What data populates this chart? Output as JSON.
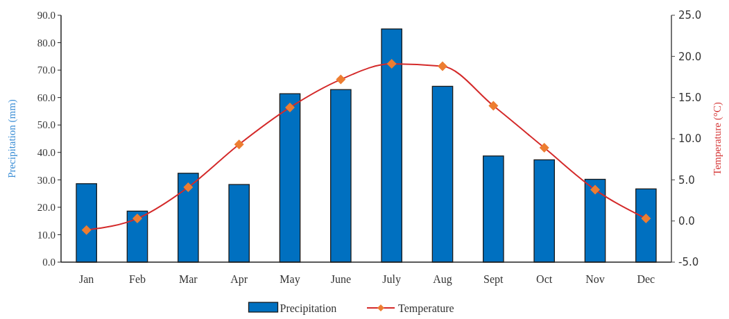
{
  "chart_data": {
    "type": "bar",
    "categories": [
      "Jan",
      "Feb",
      "Mar",
      "Apr",
      "May",
      "June",
      "July",
      "Aug",
      "Sept",
      "Oct",
      "Nov",
      "Dec"
    ],
    "ylabel": "Precipitation (mm)",
    "y2label": "Temperature (°C)",
    "series": [
      {
        "name": "Precipitation",
        "color": "#0070c0",
        "values": [
          28.6,
          18.6,
          32.4,
          28.3,
          61.4,
          62.9,
          85.0,
          64.1,
          38.7,
          37.3,
          30.2,
          26.7
        ]
      },
      {
        "name": "Temperature",
        "type": "line",
        "axis": "y2",
        "color": "#d42a2a",
        "colors": [
          "#ed7d31",
          "#ed7d31",
          "#ed7d31",
          "#ed7d31",
          "#ed7d31",
          "#ed7d31",
          "#ed7d31",
          "#ed7d31",
          "#ed7d31",
          "#ed7d31",
          "#ed7d31",
          "#ed7d31"
        ],
        "marker": "diamond",
        "values": [
          -1.1,
          0.3,
          4.1,
          9.3,
          13.8,
          17.2,
          19.1,
          18.8,
          14.0,
          8.9,
          3.8,
          0.3
        ]
      }
    ],
    "ylim": [
      0,
      90
    ],
    "yticks": [
      {
        "value": 0,
        "label": "0.0"
      },
      {
        "value": 10,
        "label": "10.0"
      },
      {
        "value": 20,
        "label": "20.0"
      },
      {
        "value": 30,
        "label": "30.0"
      },
      {
        "value": 40,
        "label": "40.0"
      },
      {
        "value": 50,
        "label": "50.0"
      },
      {
        "value": 60,
        "label": "60.0"
      },
      {
        "value": 70,
        "label": "70.0"
      },
      {
        "value": 80,
        "label": "80.0"
      },
      {
        "value": 90,
        "label": "90.0"
      }
    ],
    "y2lim": [
      -5,
      25
    ],
    "y2ticks": [
      {
        "value": -5,
        "label": "-5.0"
      },
      {
        "value": 0,
        "label": "0.0"
      },
      {
        "value": 5,
        "label": "5.0"
      },
      {
        "value": 10,
        "label": "10.0"
      },
      {
        "value": 15,
        "label": "15.0"
      },
      {
        "value": 20,
        "label": "20.0"
      },
      {
        "value": 25,
        "label": "25.0"
      }
    ],
    "legend": "bottom"
  }
}
